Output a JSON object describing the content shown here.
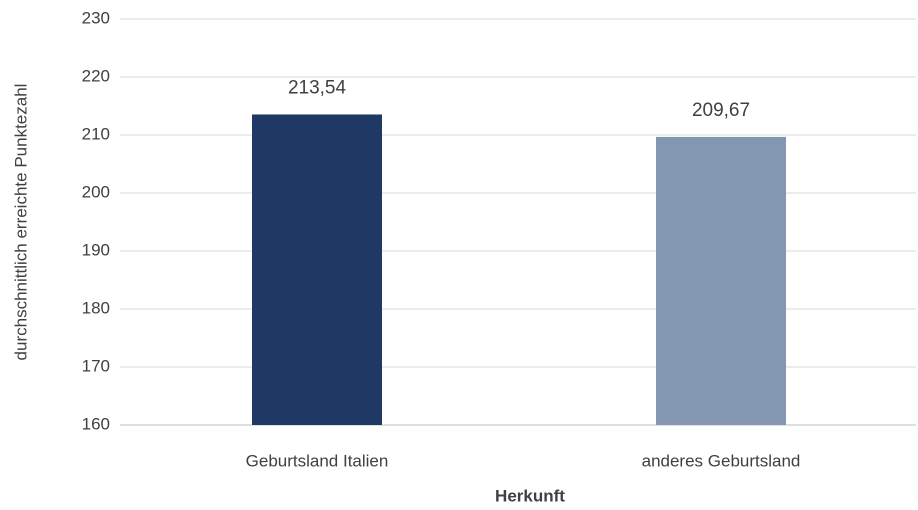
{
  "chart_data": {
    "type": "bar",
    "categories": [
      "Geburtsland Italien",
      "anderes Geburtsland"
    ],
    "values": [
      213.54,
      209.67
    ],
    "value_labels": [
      "213,54",
      "209,67"
    ],
    "colors": [
      "#203864",
      "#8497b0"
    ],
    "xlabel": "Herkunft",
    "ylabel": "durchschnittlich erreichte Punktezahl",
    "ylim": [
      160,
      230
    ],
    "yticks": [
      160,
      170,
      180,
      190,
      200,
      210,
      220,
      230
    ],
    "grid": true
  }
}
